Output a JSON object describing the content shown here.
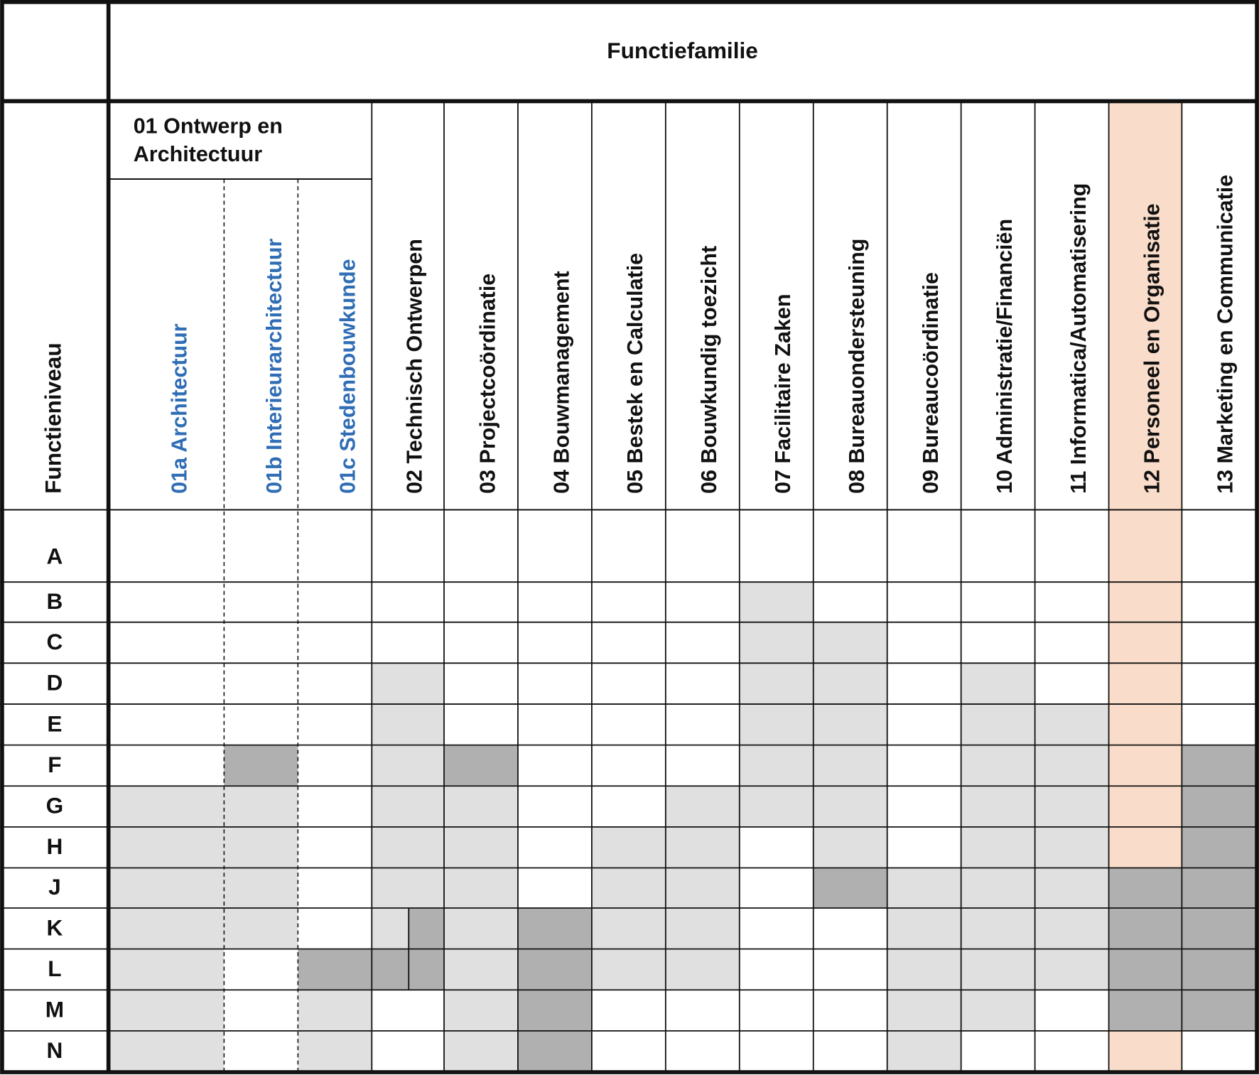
{
  "header": {
    "title": "Functiefamilie",
    "row_header": "Functieniveau",
    "group": "01 Ontwerp en Architectuur"
  },
  "columns": [
    "01a Architectuur",
    "01b Interieurarchitectuur",
    "01c Stedenbouwkunde",
    "02 Technisch Ontwerpen",
    "03 Projectcoördinatie",
    "04 Bouwmanagement",
    "05 Bestek en Calculatie",
    "06 Bouwkundig toezicht",
    "07 Facilitaire Zaken",
    "08 Bureauondersteuning",
    "09 Bureaucoördinatie",
    "10 Administratie/Financiën",
    "11 Informatica/Automatisering",
    "12 Personeel en Organisatie",
    "13 Marketing en Communicatie"
  ],
  "rows": [
    "A",
    "B",
    "C",
    "D",
    "E",
    "F",
    "G",
    "H",
    "J",
    "K",
    "L",
    "M",
    "N"
  ]
}
